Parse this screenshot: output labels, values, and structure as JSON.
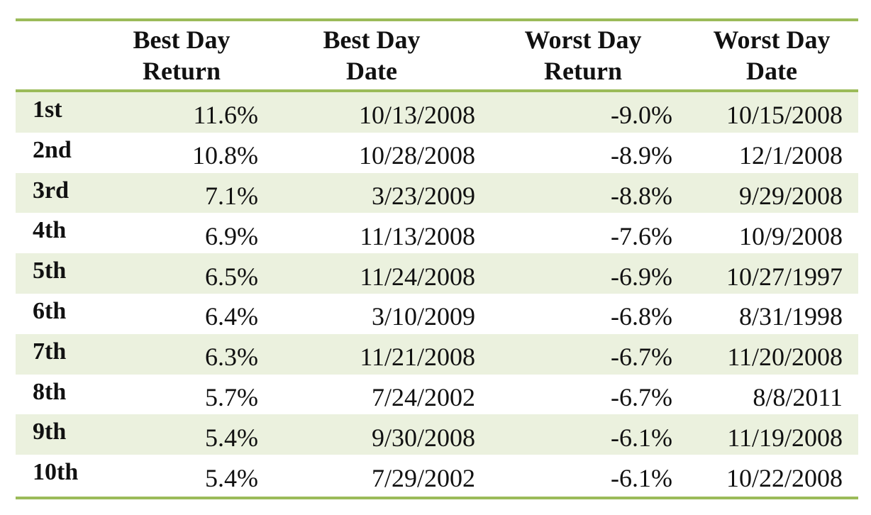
{
  "table": {
    "headers": [
      "",
      "Best Day\nReturn",
      "Best Day\nDate",
      "Worst Day\nReturn",
      "Worst Day\nDate"
    ],
    "rows": [
      {
        "rank": "1st",
        "best_return": "11.6%",
        "best_date": "10/13/2008",
        "worst_return": "-9.0%",
        "worst_date": "10/15/2008"
      },
      {
        "rank": "2nd",
        "best_return": "10.8%",
        "best_date": "10/28/2008",
        "worst_return": "-8.9%",
        "worst_date": "12/1/2008"
      },
      {
        "rank": "3rd",
        "best_return": "7.1%",
        "best_date": "3/23/2009",
        "worst_return": "-8.8%",
        "worst_date": "9/29/2008"
      },
      {
        "rank": "4th",
        "best_return": "6.9%",
        "best_date": "11/13/2008",
        "worst_return": "-7.6%",
        "worst_date": "10/9/2008"
      },
      {
        "rank": "5th",
        "best_return": "6.5%",
        "best_date": "11/24/2008",
        "worst_return": "-6.9%",
        "worst_date": "10/27/1997"
      },
      {
        "rank": "6th",
        "best_return": "6.4%",
        "best_date": "3/10/2009",
        "worst_return": "-6.8%",
        "worst_date": "8/31/1998"
      },
      {
        "rank": "7th",
        "best_return": "6.3%",
        "best_date": "11/21/2008",
        "worst_return": "-6.7%",
        "worst_date": "11/20/2008"
      },
      {
        "rank": "8th",
        "best_return": "5.7%",
        "best_date": "7/24/2002",
        "worst_return": "-6.7%",
        "worst_date": "8/8/2011"
      },
      {
        "rank": "9th",
        "best_return": "5.4%",
        "best_date": "9/30/2008",
        "worst_return": "-6.1%",
        "worst_date": "11/19/2008"
      },
      {
        "rank": "10th",
        "best_return": "5.4%",
        "best_date": "7/29/2002",
        "worst_return": "-6.1%",
        "worst_date": "10/22/2008"
      }
    ]
  },
  "colors": {
    "rule": "#9bbb59",
    "row_shade": "#ebf1de"
  }
}
